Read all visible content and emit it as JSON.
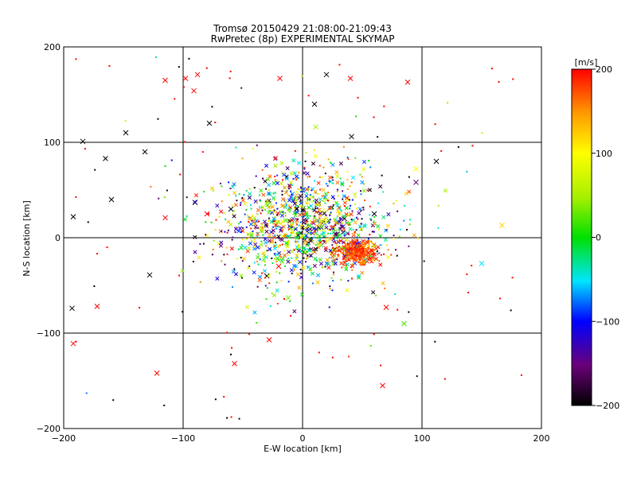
{
  "chart_data": {
    "type": "scatter",
    "title": "Tromsø 20150429 21:08:00-21:09:43",
    "subtitle": "RwPretec (8p) EXPERIMENTAL SKYMAP",
    "xlabel": "E-W location [km]",
    "ylabel": "N-S location [km]",
    "xlim": [
      -200,
      200
    ],
    "ylim": [
      -200,
      200
    ],
    "xticks": [
      -200,
      -100,
      0,
      100,
      200
    ],
    "yticks": [
      -200,
      -100,
      0,
      100,
      200
    ],
    "grid": true,
    "marker": "x (sized) and dot",
    "colorbar": {
      "label": "[m/s]",
      "range": [
        -200,
        200
      ],
      "ticks": [
        -200,
        -100,
        0,
        100,
        200
      ],
      "colormap": "rainbow: black → purple → blue → cyan → green → yellow → orange → red"
    },
    "points": [
      {
        "x": -184,
        "y": 101,
        "v": -200
      },
      {
        "x": -165,
        "y": 83,
        "v": -200
      },
      {
        "x": -148,
        "y": 110,
        "v": -200
      },
      {
        "x": -132,
        "y": 90,
        "v": -200
      },
      {
        "x": -192,
        "y": 22,
        "v": -200
      },
      {
        "x": -160,
        "y": 40,
        "v": -200
      },
      {
        "x": -128,
        "y": -39,
        "v": -200
      },
      {
        "x": -193,
        "y": -74,
        "v": -200
      },
      {
        "x": -98,
        "y": 167,
        "v": 200
      },
      {
        "x": -88,
        "y": 171,
        "v": 200
      },
      {
        "x": -91,
        "y": 154,
        "v": 200
      },
      {
        "x": -115,
        "y": 165,
        "v": 200
      },
      {
        "x": -19,
        "y": 167,
        "v": 200
      },
      {
        "x": 40,
        "y": 167,
        "v": 200
      },
      {
        "x": 88,
        "y": 163,
        "v": 200
      },
      {
        "x": 20,
        "y": 171,
        "v": -200
      },
      {
        "x": 10,
        "y": 140,
        "v": -200
      },
      {
        "x": -78,
        "y": 120,
        "v": -200
      },
      {
        "x": 11,
        "y": 116,
        "v": 50
      },
      {
        "x": 41,
        "y": 106,
        "v": -200
      },
      {
        "x": 112,
        "y": 80,
        "v": -200
      },
      {
        "x": 95,
        "y": 72,
        "v": 100
      },
      {
        "x": 95,
        "y": 58,
        "v": -150
      },
      {
        "x": 167,
        "y": 13,
        "v": 120
      },
      {
        "x": 150,
        "y": -27,
        "v": -50
      },
      {
        "x": 85,
        "y": -90,
        "v": 20
      },
      {
        "x": 70,
        "y": -73,
        "v": 200
      },
      {
        "x": 67,
        "y": -155,
        "v": 200
      },
      {
        "x": -28,
        "y": -107,
        "v": 200
      },
      {
        "x": -57,
        "y": -132,
        "v": 200
      },
      {
        "x": -122,
        "y": -142,
        "v": 200
      },
      {
        "x": -172,
        "y": -72,
        "v": 200
      },
      {
        "x": -192,
        "y": -111,
        "v": 200
      },
      {
        "x": -12,
        "y": -63,
        "v": 40
      },
      {
        "x": -115,
        "y": 21,
        "v": 200
      },
      {
        "x": -90,
        "y": 37,
        "v": -200
      },
      {
        "x": -60,
        "y": 30,
        "v": -200
      },
      {
        "x": -80,
        "y": 25,
        "v": 200
      },
      {
        "x": 25,
        "y": 10,
        "v": 200
      },
      {
        "x": 45,
        "y": -15,
        "v": 200
      },
      {
        "x": 55,
        "y": -20,
        "v": 200
      },
      {
        "x": 35,
        "y": 20,
        "v": -200
      },
      {
        "x": -30,
        "y": -40,
        "v": -200
      },
      {
        "x": -20,
        "y": -30,
        "v": 200
      },
      {
        "x": -10,
        "y": 10,
        "v": 0
      },
      {
        "x": 5,
        "y": 5,
        "v": 40
      },
      {
        "x": 15,
        "y": -5,
        "v": 200
      },
      {
        "x": -5,
        "y": 30,
        "v": -200
      },
      {
        "x": 0,
        "y": 50,
        "v": -100
      },
      {
        "x": 20,
        "y": 40,
        "v": 80
      },
      {
        "x": -40,
        "y": 15,
        "v": 200
      },
      {
        "x": 60,
        "y": 25,
        "v": -200
      }
    ]
  }
}
